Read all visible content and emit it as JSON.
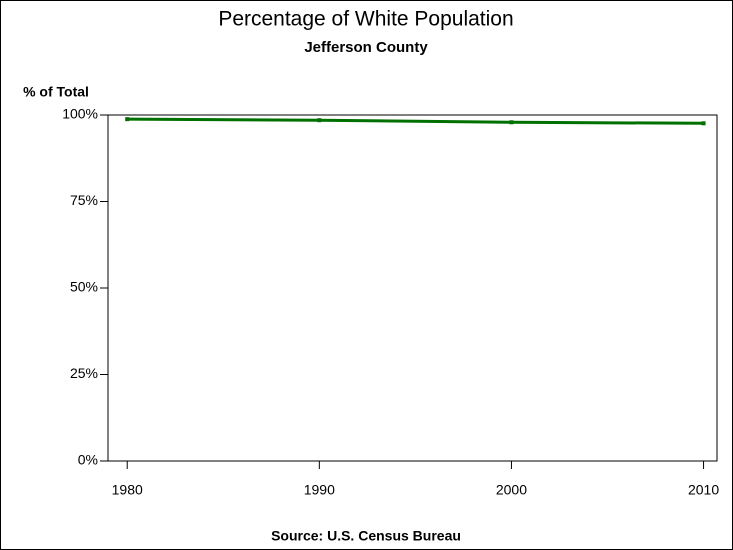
{
  "chart_data": {
    "type": "line",
    "title": "Percentage of White Population",
    "subtitle": "Jefferson County",
    "y_label": "% of Total",
    "footnote": "Source: U.S. Census Bureau",
    "x": [
      1980,
      1990,
      2000,
      2010
    ],
    "values": [
      98.8,
      98.5,
      97.9,
      97.6
    ],
    "color": "#007000",
    "xlim": [
      1979,
      2010.7
    ],
    "xticks": [
      1980,
      1990,
      2000,
      2010
    ],
    "ylim": [
      0,
      100
    ],
    "yticks": [
      {
        "value": 0,
        "label": "0%"
      },
      {
        "value": 25,
        "label": "25%"
      },
      {
        "value": 50,
        "label": "50%"
      },
      {
        "value": 75,
        "label": "75%"
      },
      {
        "value": 100,
        "label": "100%"
      }
    ],
    "grid": false
  }
}
